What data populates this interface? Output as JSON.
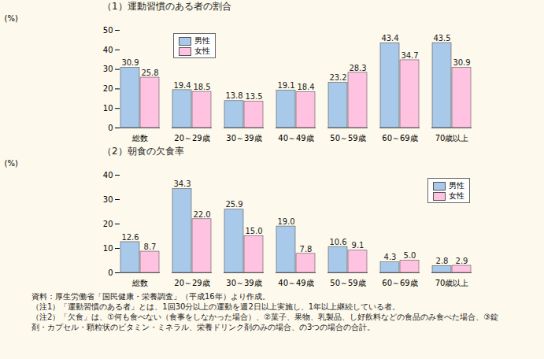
{
  "chart_data": [
    {
      "type": "bar",
      "title": "（1）運動習慣のある者の割合",
      "y_label": "(%)",
      "categories": [
        "総数",
        "20～29歳",
        "30～39歳",
        "40～49歳",
        "50～59歳",
        "60～69歳",
        "70歳以上"
      ],
      "series": [
        {
          "name": "男性",
          "color": "#a9c9ea",
          "values": [
            30.9,
            19.4,
            13.8,
            19.1,
            23.2,
            43.4,
            43.5
          ],
          "value_labels": [
            "30.9",
            "19.4",
            "13.8",
            "19.1",
            "23.2",
            "43.4",
            "43.5"
          ]
        },
        {
          "name": "女性",
          "color": "#ffc3e1",
          "values": [
            25.8,
            18.5,
            13.5,
            18.4,
            28.3,
            34.7,
            30.9
          ],
          "value_labels": [
            "25.8",
            "18.5",
            "13.5",
            "18.4",
            "28.3",
            "34.7",
            "30.9"
          ]
        }
      ],
      "ylim": [
        0,
        50
      ],
      "yticks": [
        0,
        10,
        20,
        30,
        40,
        50
      ],
      "grid": false,
      "data_labels": true,
      "legend": "top-left"
    },
    {
      "type": "bar",
      "title": "（2）朝食の欠食率",
      "y_label": "(%)",
      "categories": [
        "総数",
        "20～29歳",
        "30～39歳",
        "40～49歳",
        "50～59歳",
        "60～69歳",
        "70歳以上"
      ],
      "series": [
        {
          "name": "男性",
          "color": "#a9c9ea",
          "values": [
            12.6,
            34.3,
            25.9,
            19.0,
            10.6,
            4.3,
            2.8
          ],
          "value_labels": [
            "12.6",
            "34.3",
            "25.9",
            "19.0",
            "10.6",
            "4.3",
            "2.8"
          ]
        },
        {
          "name": "女性",
          "color": "#ffc3e1",
          "values": [
            8.7,
            22.0,
            15.0,
            7.8,
            9.1,
            5.0,
            2.9
          ],
          "value_labels": [
            "8.7",
            "22.0",
            "15.0",
            "7.8",
            "9.1",
            "5.0",
            "2.9"
          ]
        }
      ],
      "ylim": [
        0,
        40
      ],
      "yticks": [
        0,
        10,
        20,
        30,
        40
      ],
      "grid": false,
      "data_labels": true,
      "legend": "top-right"
    }
  ],
  "notes": [
    "資料：厚生労働省「国民健康・栄養調査」（平成16年）より作成。",
    "（注1）「運動習慣のある者」とは、1回30分以上の運動を週2日以上実施し、1年以上継続している者。",
    "（注2）「欠食」は、①何も食べない（食事をしなかった場合）、②菓子、果物、乳製品、し好飲料などの食品のみ食べた場合、③錠剤・カプセル・顆粒状のビタミン・ミネラル、栄養ドリンク剤のみの場合、の3つの場合の合計。"
  ]
}
